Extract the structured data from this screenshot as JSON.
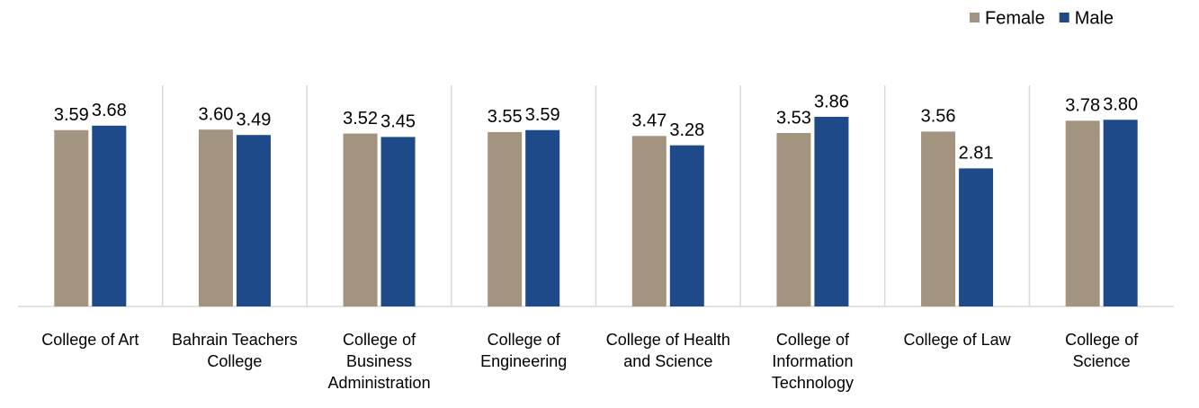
{
  "chart_data": {
    "type": "bar",
    "categories": [
      "College of Art",
      "Bahrain Teachers College",
      "College of Business Administration",
      "College of Engineering",
      "College of Health and Science",
      "College of Information Technology",
      "College of Law",
      "College of Science"
    ],
    "series": [
      {
        "name": "Female",
        "color": "#a39480",
        "values": [
          3.59,
          3.6,
          3.52,
          3.55,
          3.47,
          3.53,
          3.56,
          3.78
        ],
        "value_labels": [
          "3.59",
          "3.60",
          "3.52",
          "3.55",
          "3.47",
          "3.53",
          "3.56",
          "3.78"
        ]
      },
      {
        "name": "Male",
        "color": "#1f4a8a",
        "values": [
          3.68,
          3.49,
          3.45,
          3.59,
          3.28,
          3.86,
          2.81,
          3.8
        ],
        "value_labels": [
          "3.68",
          "3.49",
          "3.45",
          "3.59",
          "3.28",
          "3.86",
          "2.81",
          "3.80"
        ]
      }
    ],
    "ylim": [
      0,
      4.5
    ],
    "legend": "top-right"
  }
}
